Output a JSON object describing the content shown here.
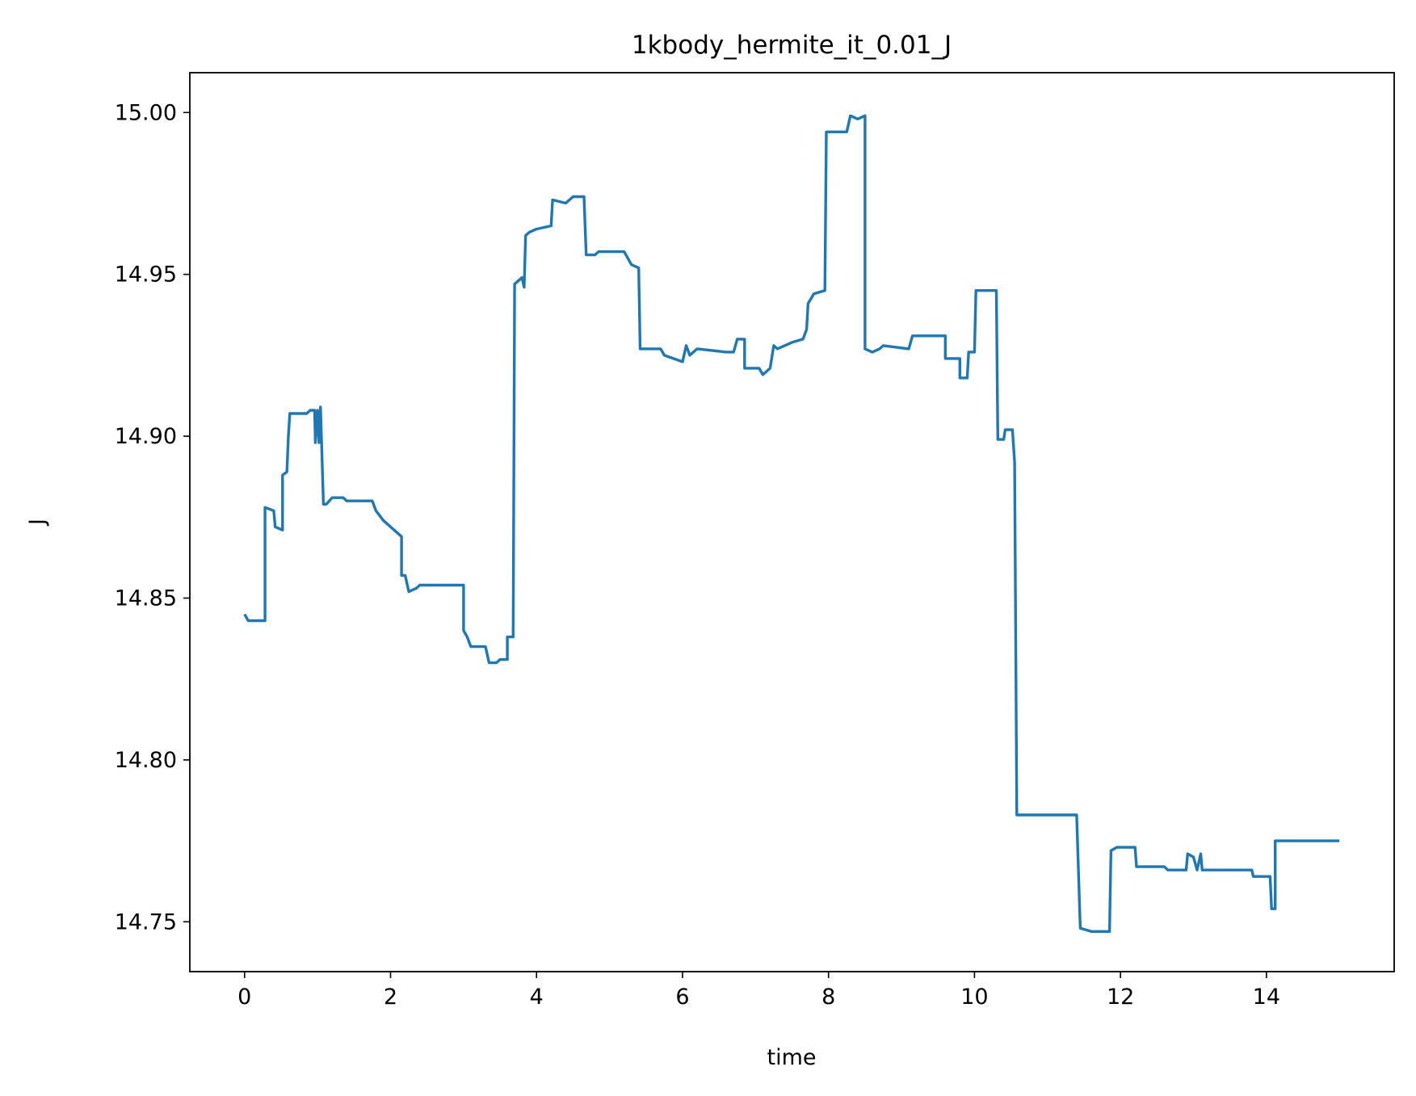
{
  "chart_data": {
    "type": "line",
    "title": "1kbody_hermite_it_0.01_J",
    "xlabel": "time",
    "ylabel": "J",
    "color": "#1f77b4",
    "x": [
      0,
      0.05,
      0.28,
      0.28,
      0.4,
      0.42,
      0.52,
      0.52,
      0.58,
      0.6,
      0.62,
      0.85,
      0.9,
      0.96,
      0.97,
      1.0,
      1.02,
      1.04,
      1.08,
      1.12,
      1.2,
      1.35,
      1.4,
      1.75,
      1.8,
      1.9,
      2.0,
      2.1,
      2.15,
      2.15,
      2.2,
      2.25,
      2.35,
      2.4,
      3.0,
      3.0,
      3.05,
      3.1,
      3.3,
      3.35,
      3.45,
      3.5,
      3.6,
      3.6,
      3.68,
      3.7,
      3.8,
      3.83,
      3.85,
      3.9,
      4.0,
      4.2,
      4.22,
      4.4,
      4.5,
      4.65,
      4.68,
      4.8,
      4.85,
      5.2,
      5.3,
      5.4,
      5.42,
      5.7,
      5.75,
      6.0,
      6.05,
      6.1,
      6.2,
      6.6,
      6.7,
      6.75,
      6.85,
      6.85,
      7.05,
      7.1,
      7.2,
      7.25,
      7.3,
      7.5,
      7.65,
      7.7,
      7.72,
      7.8,
      7.95,
      7.97,
      8.25,
      8.3,
      8.4,
      8.5,
      8.5,
      8.6,
      8.7,
      8.75,
      9.1,
      9.15,
      9.6,
      9.6,
      9.8,
      9.8,
      9.9,
      9.92,
      10.0,
      10.02,
      10.3,
      10.32,
      10.4,
      10.42,
      10.52,
      10.55,
      10.58,
      11.4,
      11.45,
      11.6,
      11.85,
      11.87,
      11.95,
      12.2,
      12.22,
      12.6,
      12.65,
      12.9,
      12.92,
      13.0,
      13.05,
      13.1,
      13.12,
      13.8,
      13.82,
      14.05,
      14.07,
      14.12,
      14.12,
      15.0
    ],
    "values": [
      14.845,
      14.843,
      14.843,
      14.878,
      14.877,
      14.872,
      14.871,
      14.888,
      14.889,
      14.9,
      14.907,
      14.907,
      14.908,
      14.908,
      14.898,
      14.908,
      14.898,
      14.909,
      14.879,
      14.879,
      14.881,
      14.881,
      14.88,
      14.88,
      14.877,
      14.874,
      14.872,
      14.87,
      14.869,
      14.857,
      14.857,
      14.852,
      14.853,
      14.854,
      14.854,
      14.84,
      14.838,
      14.835,
      14.835,
      14.83,
      14.83,
      14.831,
      14.831,
      14.838,
      14.838,
      14.947,
      14.949,
      14.946,
      14.962,
      14.963,
      14.964,
      14.965,
      14.973,
      14.972,
      14.974,
      14.974,
      14.956,
      14.956,
      14.957,
      14.957,
      14.953,
      14.952,
      14.927,
      14.927,
      14.925,
      14.923,
      14.928,
      14.925,
      14.927,
      14.926,
      14.926,
      14.93,
      14.93,
      14.921,
      14.921,
      14.919,
      14.921,
      14.928,
      14.927,
      14.929,
      14.93,
      14.933,
      14.941,
      14.944,
      14.945,
      14.994,
      14.994,
      14.999,
      14.998,
      14.999,
      14.927,
      14.926,
      14.927,
      14.928,
      14.927,
      14.931,
      14.931,
      14.924,
      14.924,
      14.918,
      14.918,
      14.926,
      14.926,
      14.945,
      14.945,
      14.899,
      14.899,
      14.902,
      14.902,
      14.892,
      14.783,
      14.783,
      14.748,
      14.747,
      14.747,
      14.772,
      14.773,
      14.773,
      14.767,
      14.767,
      14.766,
      14.766,
      14.771,
      14.77,
      14.766,
      14.771,
      14.766,
      14.766,
      14.764,
      14.764,
      14.754,
      14.754,
      14.775,
      14.775
    ],
    "xlim": [
      -0.75,
      15.75
    ],
    "xticks": [
      0,
      2,
      4,
      6,
      8,
      10,
      12,
      14
    ],
    "ylim": [
      14.7346,
      15.0123
    ],
    "yticks": [
      14.75,
      {
        "value": 14.8,
        "label": "14.80"
      },
      14.85,
      {
        "value": 14.9,
        "label": "14.90"
      },
      14.95,
      {
        "value": 15,
        "label": "15.00"
      }
    ]
  }
}
